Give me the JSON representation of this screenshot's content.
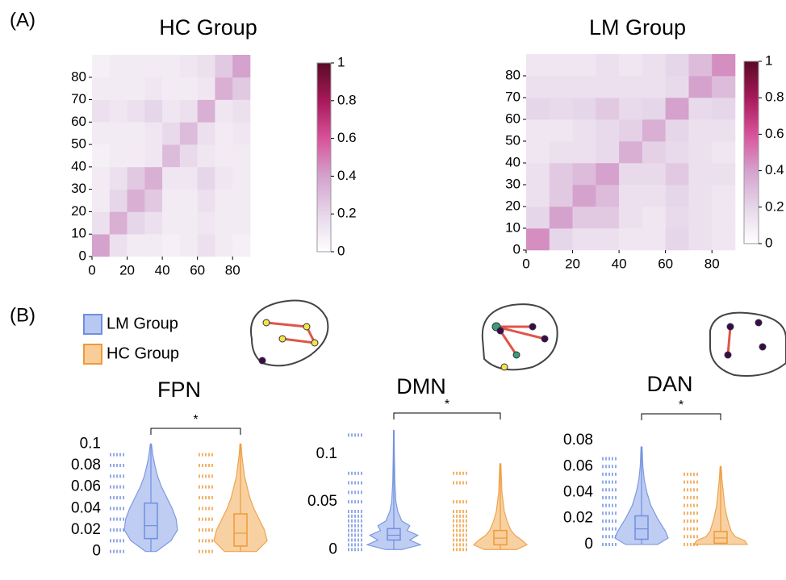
{
  "panels": [
    "(A)",
    "(B)"
  ],
  "chart_data": [
    {
      "type": "heatmap",
      "title": "HC Group",
      "xlim": [
        0,
        90
      ],
      "ylim": [
        0,
        90
      ],
      "xticks": [
        0,
        20,
        40,
        60,
        80
      ],
      "yticks": [
        0,
        10,
        20,
        30,
        40,
        50,
        60,
        70,
        80
      ],
      "zlim": [
        0,
        1
      ],
      "cticks": [
        0,
        0.2,
        0.4,
        0.6,
        0.8,
        1
      ],
      "colormap": [
        "#ffffff",
        "#e6d6e9",
        "#d4a2cd",
        "#d8529a",
        "#a7195a",
        "#5a0a26"
      ],
      "values": [
        [
          0.4,
          0.15,
          0.1,
          0.1,
          0.08,
          0.1,
          0.15,
          0.1,
          0.08
        ],
        [
          0.15,
          0.35,
          0.2,
          0.15,
          0.1,
          0.1,
          0.12,
          0.1,
          0.1
        ],
        [
          0.1,
          0.2,
          0.35,
          0.25,
          0.1,
          0.1,
          0.15,
          0.1,
          0.1
        ],
        [
          0.1,
          0.15,
          0.25,
          0.35,
          0.12,
          0.12,
          0.2,
          0.12,
          0.1
        ],
        [
          0.08,
          0.1,
          0.1,
          0.12,
          0.3,
          0.18,
          0.12,
          0.1,
          0.1
        ],
        [
          0.1,
          0.1,
          0.1,
          0.12,
          0.18,
          0.3,
          0.15,
          0.1,
          0.12
        ],
        [
          0.15,
          0.12,
          0.15,
          0.2,
          0.12,
          0.15,
          0.35,
          0.12,
          0.15
        ],
        [
          0.1,
          0.1,
          0.1,
          0.12,
          0.1,
          0.1,
          0.12,
          0.35,
          0.25
        ],
        [
          0.08,
          0.1,
          0.1,
          0.1,
          0.1,
          0.12,
          0.15,
          0.25,
          0.4
        ]
      ]
    },
    {
      "type": "heatmap",
      "title": "LM Group",
      "xlim": [
        0,
        90
      ],
      "ylim": [
        0,
        90
      ],
      "xticks": [
        0,
        20,
        40,
        60,
        80
      ],
      "yticks": [
        0,
        10,
        20,
        30,
        40,
        50,
        60,
        70,
        80
      ],
      "zlim": [
        0,
        1
      ],
      "cticks": [
        0,
        0.2,
        0.4,
        0.6,
        0.8,
        1
      ],
      "colormap": [
        "#ffffff",
        "#e6d6e9",
        "#d4a2cd",
        "#d8529a",
        "#a7195a",
        "#5a0a26"
      ],
      "values": [
        [
          0.45,
          0.2,
          0.15,
          0.15,
          0.12,
          0.12,
          0.2,
          0.15,
          0.12
        ],
        [
          0.2,
          0.4,
          0.25,
          0.25,
          0.15,
          0.12,
          0.18,
          0.15,
          0.12
        ],
        [
          0.15,
          0.25,
          0.4,
          0.3,
          0.15,
          0.15,
          0.2,
          0.15,
          0.12
        ],
        [
          0.15,
          0.25,
          0.3,
          0.4,
          0.18,
          0.18,
          0.25,
          0.15,
          0.15
        ],
        [
          0.12,
          0.15,
          0.15,
          0.18,
          0.35,
          0.22,
          0.18,
          0.15,
          0.12
        ],
        [
          0.12,
          0.12,
          0.15,
          0.18,
          0.22,
          0.35,
          0.2,
          0.15,
          0.15
        ],
        [
          0.2,
          0.18,
          0.2,
          0.25,
          0.18,
          0.2,
          0.4,
          0.18,
          0.2
        ],
        [
          0.15,
          0.15,
          0.15,
          0.15,
          0.15,
          0.15,
          0.18,
          0.4,
          0.3
        ],
        [
          0.12,
          0.12,
          0.12,
          0.15,
          0.12,
          0.15,
          0.2,
          0.3,
          0.45
        ]
      ]
    },
    {
      "type": "violin",
      "title": "FPN",
      "annotation": "*",
      "ylim": [
        -0.004,
        0.104
      ],
      "yticks": [
        0,
        0.02,
        0.04,
        0.06,
        0.08,
        0.1
      ],
      "series": [
        {
          "name": "LM Group",
          "color": "#6f8fdf",
          "fill": "#b9c8f2",
          "points": [
            0,
            0.01,
            0.02,
            0.03,
            0.04,
            0.05,
            0.06,
            0.07,
            0.08,
            0.09
          ],
          "q1": 0.012,
          "median": 0.024,
          "q3": 0.045,
          "min": 0,
          "max": 0.1,
          "density_y": [
            0,
            0.01,
            0.02,
            0.03,
            0.04,
            0.05,
            0.06,
            0.07,
            0.08,
            0.09,
            0.1
          ],
          "density": [
            0.2,
            0.75,
            1,
            0.95,
            0.8,
            0.6,
            0.4,
            0.25,
            0.15,
            0.07,
            0.02
          ]
        },
        {
          "name": "HC Group",
          "color": "#ee9a3a",
          "fill": "#f8cd99",
          "points": [
            0,
            0.01,
            0.02,
            0.03,
            0.04,
            0.05,
            0.06,
            0.07,
            0.08,
            0.09
          ],
          "q1": 0.005,
          "median": 0.017,
          "q3": 0.035,
          "min": 0,
          "max": 0.1,
          "density_y": [
            0,
            0.01,
            0.02,
            0.03,
            0.04,
            0.05,
            0.06,
            0.07,
            0.08,
            0.09,
            0.1
          ],
          "density": [
            0.6,
            1,
            0.9,
            0.7,
            0.5,
            0.35,
            0.25,
            0.15,
            0.1,
            0.05,
            0.02
          ]
        }
      ]
    },
    {
      "type": "violin",
      "title": "DMN",
      "annotation": "*",
      "ylim": [
        -0.004,
        0.13
      ],
      "yticks": [
        0,
        0.05,
        0.1
      ],
      "series": [
        {
          "name": "LM Group",
          "color": "#6f8fdf",
          "fill": "#b9c8f2",
          "points": [
            0,
            0.005,
            0.01,
            0.015,
            0.02,
            0.025,
            0.03,
            0.035,
            0.04,
            0.05,
            0.06,
            0.07,
            0.08,
            0.12
          ],
          "q1": 0.01,
          "median": 0.015,
          "q3": 0.022,
          "min": 0,
          "max": 0.125,
          "density_y": [
            0,
            0.005,
            0.01,
            0.015,
            0.02,
            0.025,
            0.03,
            0.04,
            0.05,
            0.07,
            0.1,
            0.125
          ],
          "density": [
            0.3,
            1,
            0.6,
            0.9,
            0.5,
            0.6,
            0.3,
            0.15,
            0.08,
            0.04,
            0.02,
            0.01
          ]
        },
        {
          "name": "HC Group",
          "color": "#ee9a3a",
          "fill": "#f8cd99",
          "points": [
            0,
            0.005,
            0.01,
            0.015,
            0.02,
            0.025,
            0.03,
            0.035,
            0.04,
            0.05,
            0.07,
            0.08
          ],
          "q1": 0.005,
          "median": 0.012,
          "q3": 0.02,
          "min": 0,
          "max": 0.09,
          "density_y": [
            0,
            0.005,
            0.01,
            0.015,
            0.02,
            0.03,
            0.04,
            0.06,
            0.09
          ],
          "density": [
            0.6,
            1,
            0.8,
            0.55,
            0.4,
            0.25,
            0.15,
            0.06,
            0.02
          ]
        }
      ]
    },
    {
      "type": "violin",
      "title": "DAN",
      "annotation": "*",
      "ylim": [
        -0.004,
        0.08
      ],
      "yticks": [
        0,
        0.02,
        0.04,
        0.06,
        0.08
      ],
      "series": [
        {
          "name": "LM Group",
          "color": "#6f8fdf",
          "fill": "#b9c8f2",
          "points": [
            0,
            0.006,
            0.012,
            0.018,
            0.024,
            0.03,
            0.036,
            0.042,
            0.048,
            0.054,
            0.06,
            0.066
          ],
          "q1": 0.004,
          "median": 0.012,
          "q3": 0.022,
          "min": 0,
          "max": 0.075,
          "density_y": [
            0,
            0.005,
            0.01,
            0.02,
            0.03,
            0.04,
            0.05,
            0.06,
            0.075
          ],
          "density": [
            0.6,
            1,
            0.9,
            0.6,
            0.35,
            0.2,
            0.1,
            0.05,
            0.02
          ]
        },
        {
          "name": "HC Group",
          "color": "#ee9a3a",
          "fill": "#f8cd99",
          "points": [
            0,
            0.006,
            0.012,
            0.018,
            0.024,
            0.03,
            0.036,
            0.042,
            0.048,
            0.054
          ],
          "q1": 0.001,
          "median": 0.005,
          "q3": 0.01,
          "min": 0,
          "max": 0.06,
          "density_y": [
            0,
            0.003,
            0.006,
            0.01,
            0.02,
            0.03,
            0.04,
            0.05,
            0.06
          ],
          "density": [
            1,
            0.9,
            0.55,
            0.4,
            0.25,
            0.15,
            0.1,
            0.05,
            0.02
          ]
        }
      ]
    }
  ]
}
